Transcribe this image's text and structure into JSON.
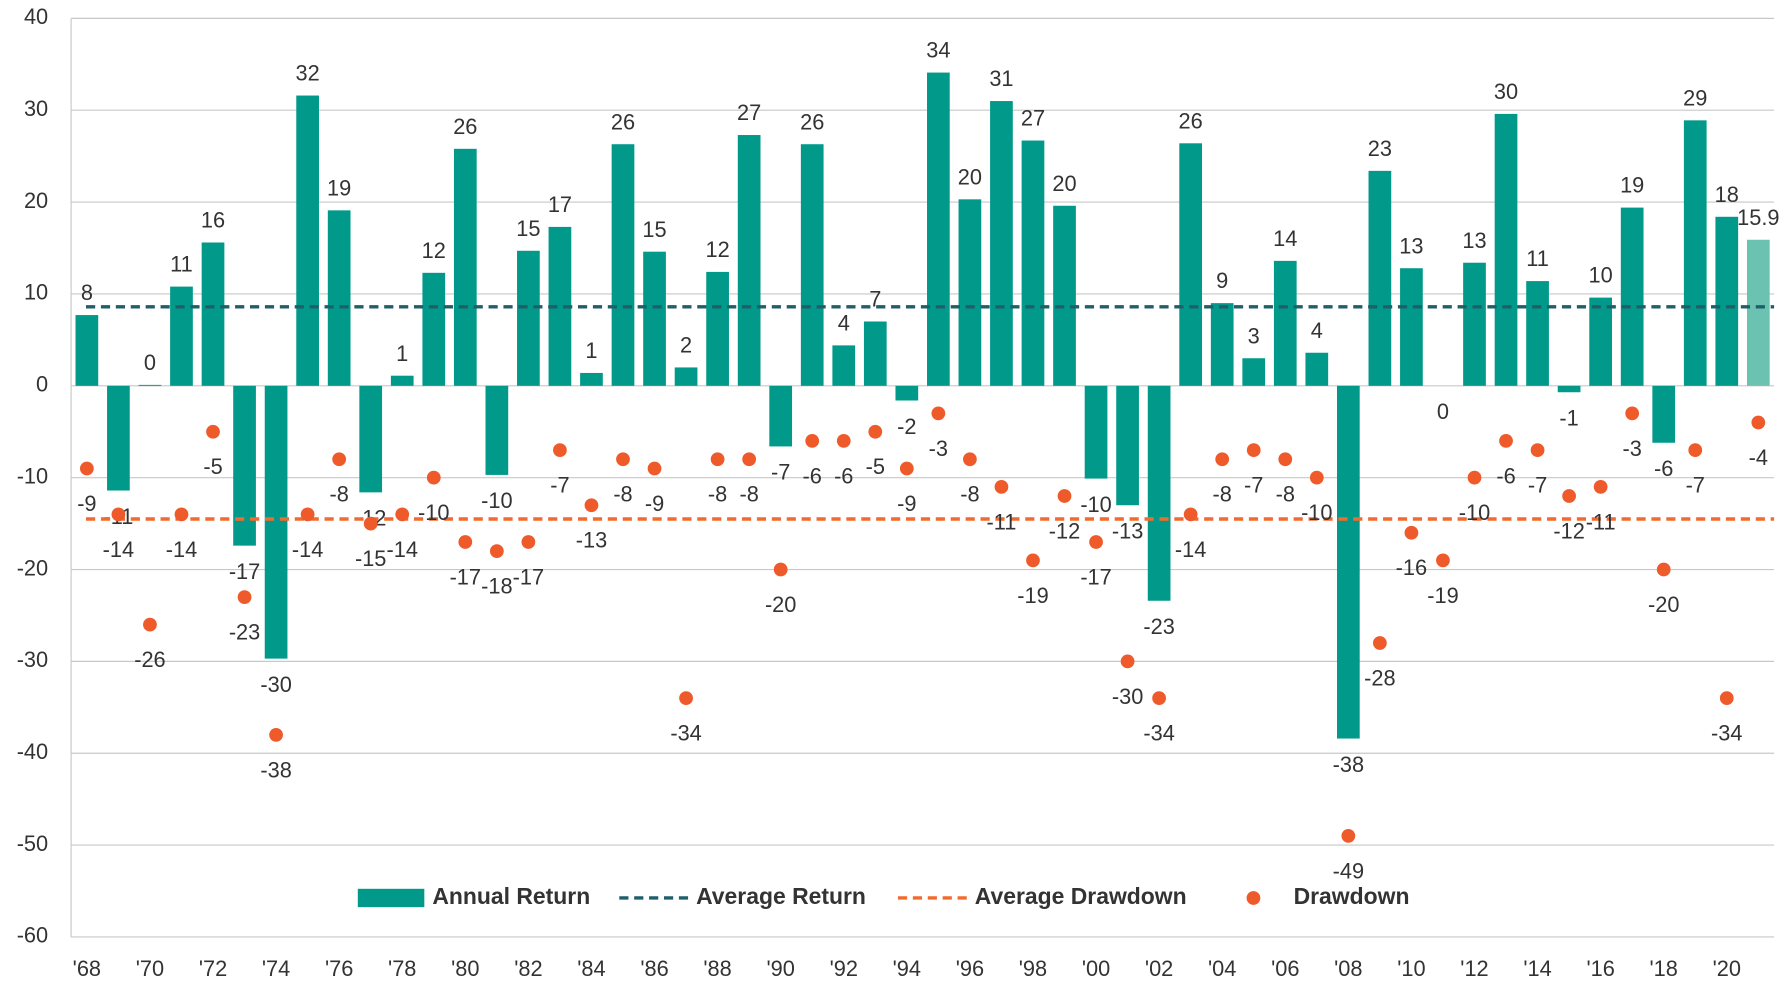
{
  "chart_data": {
    "type": "bar",
    "categories": [
      "'68",
      null,
      "'70",
      null,
      "'72",
      null,
      "'74",
      null,
      "'76",
      null,
      "'78",
      null,
      "'80",
      null,
      "'82",
      null,
      "'84",
      null,
      "'86",
      null,
      "'88",
      null,
      "'90",
      null,
      "'92",
      null,
      "'94",
      null,
      "'96",
      null,
      "'98",
      null,
      "'00",
      null,
      "'02",
      null,
      "'04",
      null,
      "'06",
      null,
      "'08",
      null,
      "'10",
      null,
      "'12",
      null,
      "'14",
      null,
      "'16",
      null,
      "'18",
      null,
      "'20",
      null
    ],
    "series": [
      {
        "name": "Annual Return",
        "type": "bar",
        "color": "#00998a",
        "colors": [
          "#00998a",
          "#00998a",
          "#00998a",
          "#00998a",
          "#00998a",
          "#00998a",
          "#00998a",
          "#00998a",
          "#00998a",
          "#00998a",
          "#00998a",
          "#00998a",
          "#00998a",
          "#00998a",
          "#00998a",
          "#00998a",
          "#00998a",
          "#00998a",
          "#00998a",
          "#00998a",
          "#00998a",
          "#00998a",
          "#00998a",
          "#00998a",
          "#00998a",
          "#00998a",
          "#00998a",
          "#00998a",
          "#00998a",
          "#00998a",
          "#00998a",
          "#00998a",
          "#00998a",
          "#00998a",
          "#00998a",
          "#00998a",
          "#00998a",
          "#00998a",
          "#00998a",
          "#00998a",
          "#00998a",
          "#00998a",
          "#00998a",
          "#00998a",
          "#00998a",
          "#00998a",
          "#00998a",
          "#00998a",
          "#00998a",
          "#00998a",
          "#00998a",
          "#00998a",
          "#00998a",
          "#6cc2b0"
        ],
        "values": [
          7.7,
          -11.4,
          0.1,
          10.8,
          15.6,
          -17.4,
          -29.7,
          31.6,
          19.1,
          -11.6,
          1.1,
          12.3,
          25.8,
          -9.7,
          14.7,
          17.3,
          1.4,
          26.3,
          14.6,
          2.0,
          12.4,
          27.3,
          -6.6,
          26.3,
          4.4,
          7.0,
          -1.6,
          34.1,
          20.3,
          31.0,
          26.7,
          19.6,
          -10.1,
          -13.0,
          -23.4,
          26.4,
          9.0,
          3.0,
          13.6,
          3.6,
          -38.4,
          23.4,
          12.8,
          0.0,
          13.4,
          29.6,
          11.4,
          -0.7,
          9.6,
          19.4,
          -6.2,
          28.9,
          18.4,
          15.9
        ],
        "value_labels": [
          "8",
          "-11",
          "0",
          "11",
          "16",
          "-17",
          "-30",
          "32",
          "19",
          "-12",
          "1",
          "12",
          "26",
          "-10",
          "15",
          "17",
          "1",
          "26",
          "15",
          "2",
          "12",
          "27",
          "-7",
          "26",
          "4",
          "7",
          "-2",
          "34",
          "20",
          "31",
          "27",
          "20",
          "-10",
          "-13",
          "-23",
          "26",
          "9",
          "3",
          "14",
          "4",
          "-38",
          "23",
          "13",
          "0",
          "13",
          "30",
          "11",
          "-1",
          "10",
          "19",
          "-6",
          "29",
          "18",
          "15.9"
        ]
      },
      {
        "name": "Drawdown",
        "type": "scatter",
        "color": "#ee5a2a",
        "values": [
          -9,
          -14,
          -26,
          -14,
          -5,
          -23,
          -38,
          -14,
          -8,
          -15,
          -14,
          -10,
          -17,
          -18,
          -17,
          -7,
          -13,
          -8,
          -9,
          -34,
          -8,
          -8,
          -20,
          -6,
          -6,
          -5,
          -9,
          -3,
          -8,
          -11,
          -19,
          -12,
          -17,
          -30,
          -34,
          -14,
          -8,
          -7,
          -8,
          -10,
          -49,
          -28,
          -16,
          -19,
          -10,
          -6,
          -7,
          -12,
          -11,
          -3,
          -20,
          -7,
          -34,
          -4
        ]
      }
    ],
    "reference_lines": [
      {
        "name": "Average Return",
        "value": 8.6,
        "color": "#1f5f6a"
      },
      {
        "name": "Average Drawdown",
        "value": -14.5,
        "color": "#f26a2e"
      }
    ],
    "ylim": [
      -60,
      40
    ],
    "yticks": [
      -60,
      -50,
      -40,
      -30,
      -20,
      -10,
      0,
      10,
      20,
      30,
      40
    ],
    "grid": true
  }
}
